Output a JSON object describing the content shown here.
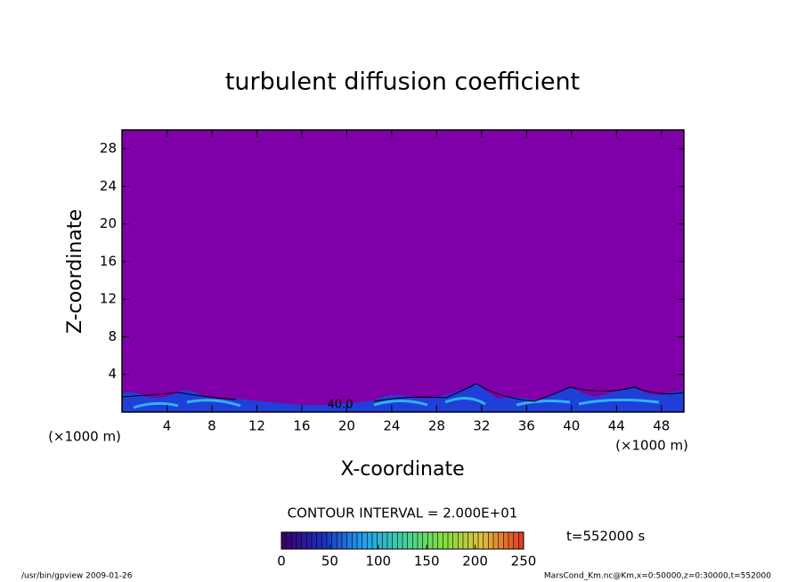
{
  "chart_data": {
    "type": "contour",
    "title": "turbulent diffusion coefficient",
    "xlabel": "X-coordinate",
    "ylabel": "Z-coordinate",
    "axis_unit": "(×1000 m)",
    "xlim": [
      0,
      50
    ],
    "xticks": [
      4,
      8,
      12,
      16,
      20,
      24,
      28,
      32,
      36,
      40,
      44,
      48
    ],
    "ylim": [
      0,
      30
    ],
    "yticks": [
      4,
      8,
      12,
      16,
      20,
      24,
      28
    ],
    "field_color": "#7f00a8",
    "contour_label": "40.0",
    "contour_interval": "CONTOUR INTERVAL = 2.000E+01",
    "time_label": "t=552000 s",
    "colorbar": {
      "lim": [
        0,
        250
      ],
      "ticks": [
        0,
        50,
        100,
        150,
        200,
        250
      ],
      "colors": [
        "#3a0070",
        "#1a30c0",
        "#20a0f0",
        "#40d0a0",
        "#80e040",
        "#e0c040",
        "#e04020"
      ]
    },
    "footer_left": "/usr/bin/gpview  2009-01-26",
    "footer_right": "MarsCond_Km.nc@Km,x=0:50000,z=0:30000,t=552000"
  }
}
